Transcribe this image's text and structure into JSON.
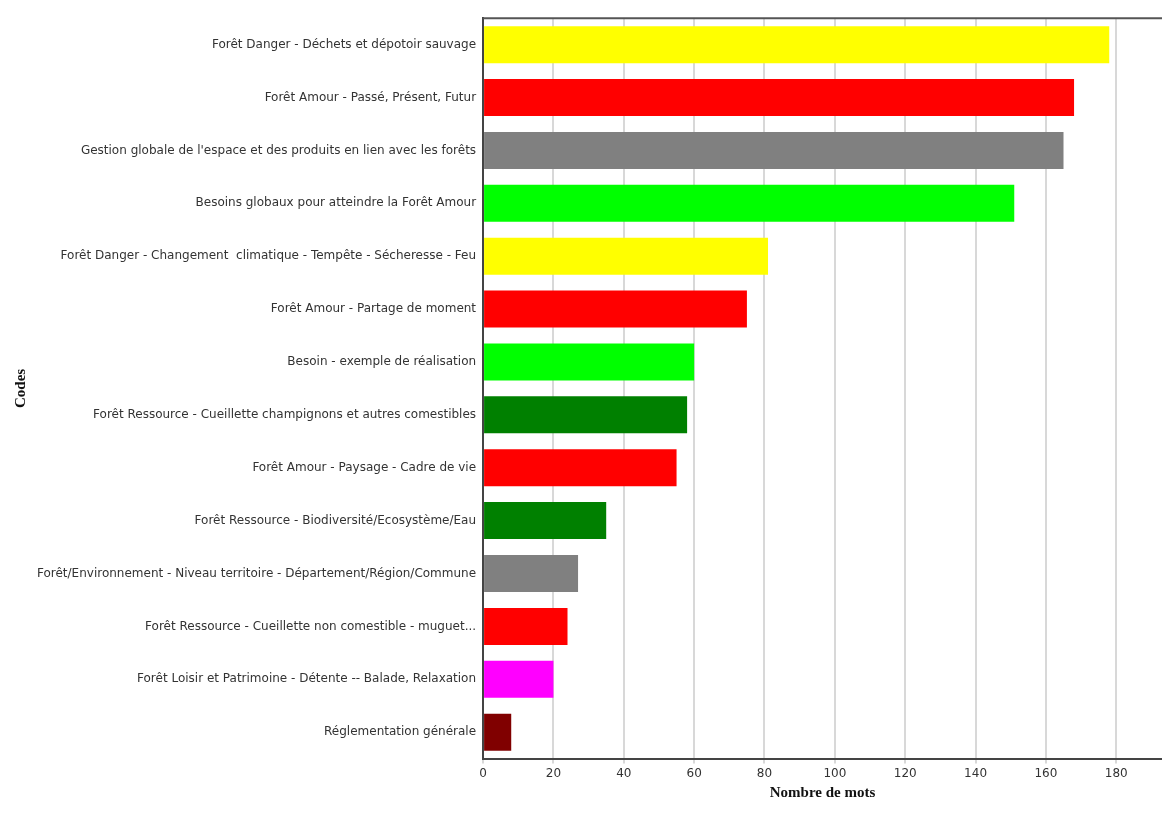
{
  "chart_data": {
    "type": "bar",
    "orientation": "horizontal",
    "xlabel": "Nombre de mots",
    "ylabel": "Codes",
    "categories": [
      "Forêt Danger - Déchets et dépotoir sauvage",
      "Forêt Amour - Passé, Présent, Futur",
      "Gestion globale de l'espace et des produits en lien avec les forêts",
      "Besoins globaux pour atteindre la Forêt Amour",
      "Forêt Danger - Changement  climatique - Tempête - Sécheresse - Feu",
      "Forêt Amour - Partage de moment",
      "Besoin - exemple de réalisation",
      "Forêt Ressource - Cueillette champignons et autres comestibles",
      "Forêt Amour - Paysage - Cadre de vie",
      "Forêt Ressource - Biodiversité/Ecosystème/Eau",
      "Forêt/Environnement - Niveau territoire - Département/Région/Commune",
      "Forêt Ressource - Cueillette non comestible - muguet...",
      "Forêt Loisir et Patrimoine - Détente -- Balade, Relaxation",
      "Réglementation générale"
    ],
    "values": [
      178,
      168,
      165,
      151,
      81,
      75,
      60,
      58,
      55,
      35,
      27,
      24,
      20,
      8
    ],
    "colors": [
      "#ffff00",
      "#ff0000",
      "#808080",
      "#00ff00",
      "#ffff00",
      "#ff0000",
      "#00ff00",
      "#008000",
      "#ff0000",
      "#008000",
      "#808080",
      "#ff0000",
      "#ff00ff",
      "#800000"
    ],
    "xlim": [
      0,
      193
    ],
    "xticks": [
      0,
      20,
      40,
      60,
      80,
      100,
      120,
      140,
      160,
      180
    ],
    "grid": "x",
    "legend": false
  }
}
